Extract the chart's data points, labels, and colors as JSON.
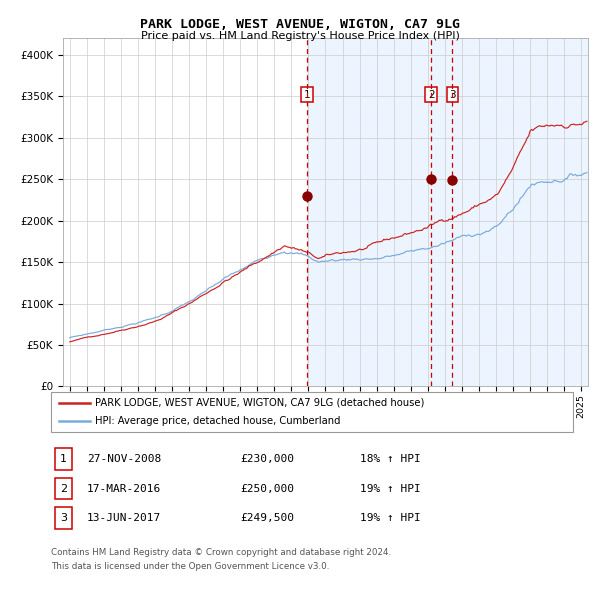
{
  "title": "PARK LODGE, WEST AVENUE, WIGTON, CA7 9LG",
  "subtitle": "Price paid vs. HM Land Registry's House Price Index (HPI)",
  "legend_entry1": "PARK LODGE, WEST AVENUE, WIGTON, CA7 9LG (detached house)",
  "legend_entry2": "HPI: Average price, detached house, Cumberland",
  "transactions": [
    {
      "num": 1,
      "date": "27-NOV-2008",
      "date_x": 2008.91,
      "price": 230000,
      "label": "18% ↑ HPI"
    },
    {
      "num": 2,
      "date": "17-MAR-2016",
      "date_x": 2016.21,
      "price": 250000,
      "label": "19% ↑ HPI"
    },
    {
      "num": 3,
      "date": "13-JUN-2017",
      "date_x": 2017.45,
      "price": 249500,
      "label": "19% ↑ HPI"
    }
  ],
  "color_hpi": "#7aaadd",
  "color_price": "#cc2222",
  "color_vline": "#cc0000",
  "color_dot": "#880000",
  "color_bg": "#ddeeff",
  "color_annotation_border": "#cc0000",
  "ylim": [
    0,
    420000
  ],
  "yticks": [
    0,
    50000,
    100000,
    150000,
    200000,
    250000,
    300000,
    350000,
    400000
  ],
  "xlim_start": 1994.6,
  "xlim_end": 2025.4,
  "footer1": "Contains HM Land Registry data © Crown copyright and database right 2024.",
  "footer2": "This data is licensed under the Open Government Licence v3.0."
}
